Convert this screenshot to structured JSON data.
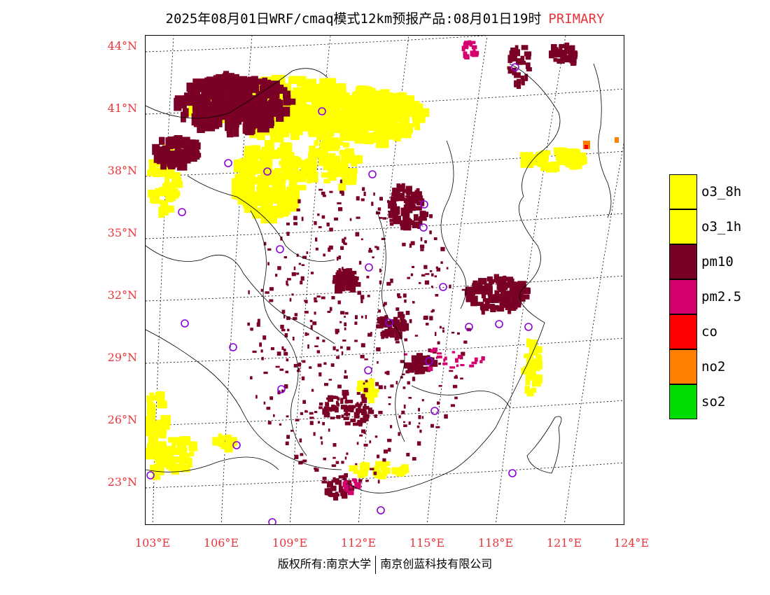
{
  "title": {
    "main": "2025年08月01日WRF/cmaq模式12km预报产品:08月01日19时",
    "tag": "PRIMARY"
  },
  "colors": {
    "accent_red": "#e8353b",
    "o3_8h": "#ffff00",
    "o3_1h": "#ffff00",
    "pm10": "#7a0026",
    "pm25": "#d4006e",
    "co": "#ff0000",
    "no2": "#ff8000",
    "so2": "#00dd00",
    "station": "#8b00d6"
  },
  "axes": {
    "lat_labels": [
      "44°N",
      "41°N",
      "38°N",
      "35°N",
      "32°N",
      "29°N",
      "26°N",
      "23°N"
    ],
    "lon_labels": [
      "103°E",
      "106°E",
      "109°E",
      "112°E",
      "115°E",
      "118°E",
      "121°E",
      "124°E"
    ]
  },
  "legend": [
    {
      "label": "o3_8h",
      "color": "#ffff00"
    },
    {
      "label": "o3_1h",
      "color": "#ffff00"
    },
    {
      "label": "pm10",
      "color": "#7a0026"
    },
    {
      "label": "pm2.5",
      "color": "#d4006e"
    },
    {
      "label": "co",
      "color": "#ff0000"
    },
    {
      "label": "no2",
      "color": "#ff8000"
    },
    {
      "label": "so2",
      "color": "#00dd00"
    }
  ],
  "copyright": {
    "left": "版权所有:南京大学",
    "right": "南京创蓝科技有限公司"
  }
}
